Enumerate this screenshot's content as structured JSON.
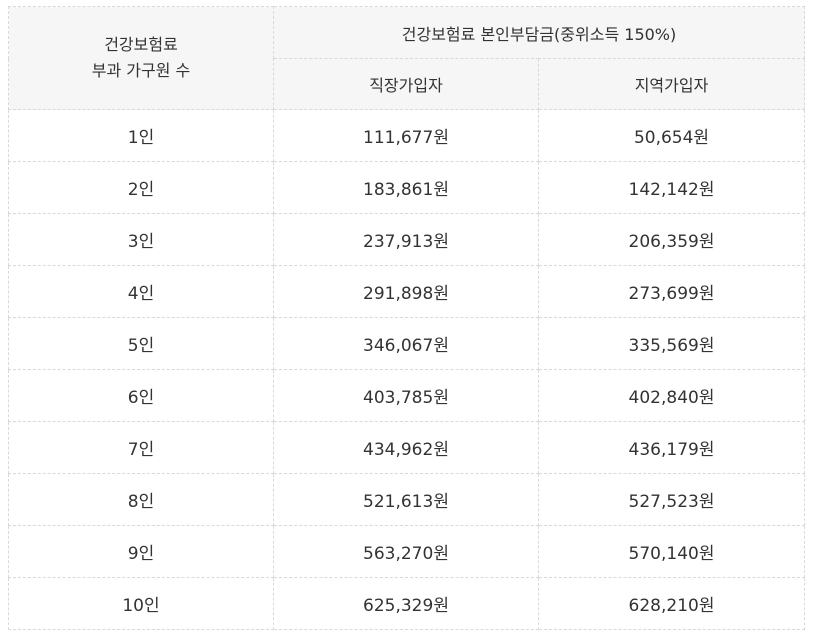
{
  "table": {
    "header": {
      "household_line1": "건강보험료",
      "household_line2": "부과 가구원 수",
      "premium_group": "건강보험료 본인부담금(중위소득 150%)",
      "employee": "직장가입자",
      "regional": "지역가입자"
    },
    "rows": [
      {
        "household": "1인",
        "employee": "111,677원",
        "regional": "50,654원"
      },
      {
        "household": "2인",
        "employee": "183,861원",
        "regional": "142,142원"
      },
      {
        "household": "3인",
        "employee": "237,913원",
        "regional": "206,359원"
      },
      {
        "household": "4인",
        "employee": "291,898원",
        "regional": "273,699원"
      },
      {
        "household": "5인",
        "employee": "346,067원",
        "regional": "335,569원"
      },
      {
        "household": "6인",
        "employee": "403,785원",
        "regional": "402,840원"
      },
      {
        "household": "7인",
        "employee": "434,962원",
        "regional": "436,179원"
      },
      {
        "household": "8인",
        "employee": "521,613원",
        "regional": "527,523원"
      },
      {
        "household": "9인",
        "employee": "563,270원",
        "regional": "570,140원"
      },
      {
        "household": "10인",
        "employee": "625,329원",
        "regional": "628,210원"
      }
    ]
  }
}
